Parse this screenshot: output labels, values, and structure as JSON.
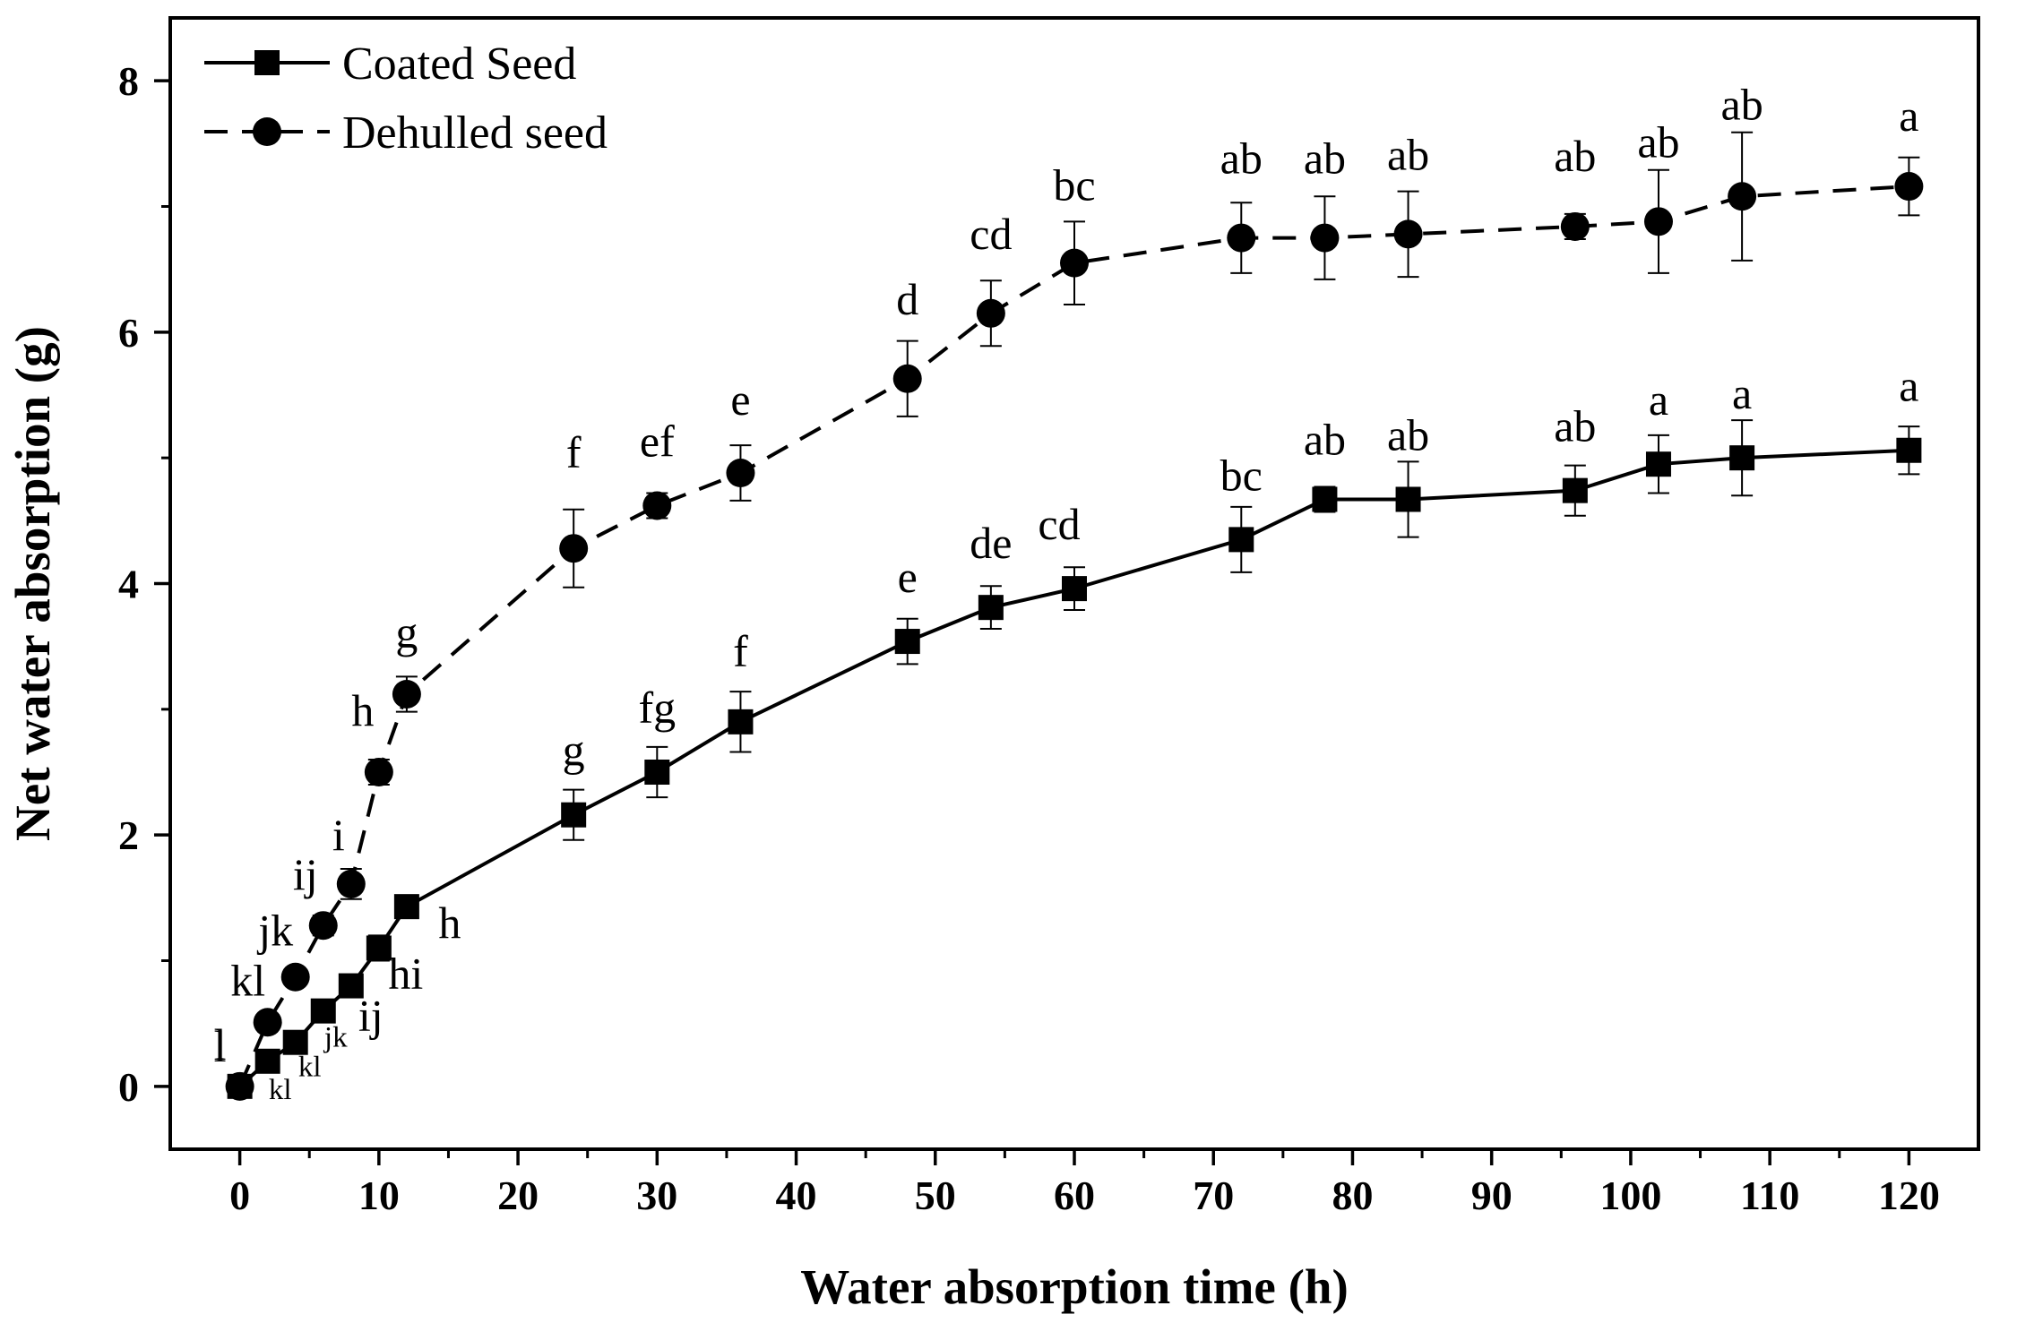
{
  "chart_data": {
    "type": "line",
    "title": "",
    "xlabel": "Water absorption time (h)",
    "ylabel": "Net water absorption (g)",
    "xlim": [
      -5,
      125
    ],
    "ylim": [
      -0.5,
      8.5
    ],
    "xticks": [
      0,
      10,
      20,
      30,
      40,
      50,
      60,
      70,
      80,
      90,
      100,
      110,
      120
    ],
    "yticks": [
      0,
      2,
      4,
      6,
      8
    ],
    "xtick_labels": [
      "0",
      "10",
      "20",
      "30",
      "40",
      "50",
      "60",
      "70",
      "80",
      "90",
      "100",
      "110",
      "120"
    ],
    "ytick_labels": [
      "0",
      "2",
      "4",
      "6",
      "8"
    ],
    "grid": false,
    "legend_position": "top-left",
    "series": [
      {
        "name": "Coated Seed",
        "marker": "square",
        "line_style": "solid",
        "color": "#000000",
        "x": [
          0,
          2,
          4,
          6,
          8,
          10,
          12,
          24,
          30,
          36,
          48,
          54,
          60,
          72,
          78,
          84,
          96,
          102,
          108,
          120
        ],
        "y": [
          0,
          0.2,
          0.35,
          0.6,
          0.8,
          1.1,
          1.43,
          2.16,
          2.5,
          2.9,
          3.54,
          3.81,
          3.96,
          4.35,
          4.67,
          4.67,
          4.74,
          4.95,
          5.0,
          5.06
        ],
        "err": [
          0,
          0.03,
          0.05,
          0.07,
          0.08,
          0.1,
          0.06,
          0.2,
          0.2,
          0.24,
          0.18,
          0.17,
          0.17,
          0.26,
          0.1,
          0.3,
          0.2,
          0.23,
          0.3,
          0.19
        ],
        "labels": [
          "l",
          "kl",
          "kl",
          "jk",
          "ij",
          "hi",
          "h",
          "g",
          "fg",
          "f",
          "e",
          "de",
          "cd",
          "bc",
          "ab",
          "ab",
          "ab",
          "a",
          "a",
          "a"
        ]
      },
      {
        "name": "Dehulled seed",
        "marker": "circle",
        "line_style": "dashed",
        "color": "#000000",
        "x": [
          0,
          2,
          4,
          6,
          8,
          10,
          12,
          24,
          30,
          36,
          48,
          54,
          60,
          72,
          78,
          84,
          96,
          102,
          108,
          120
        ],
        "y": [
          0,
          0.51,
          0.87,
          1.28,
          1.61,
          2.5,
          3.12,
          4.28,
          4.62,
          4.88,
          5.63,
          6.15,
          6.55,
          6.75,
          6.75,
          6.78,
          6.84,
          6.88,
          7.08,
          7.16
        ],
        "err": [
          0,
          0.04,
          0.06,
          0.08,
          0.12,
          0.1,
          0.14,
          0.31,
          0.1,
          0.22,
          0.3,
          0.26,
          0.33,
          0.28,
          0.33,
          0.34,
          0.1,
          0.41,
          0.51,
          0.23
        ],
        "labels": [
          "l",
          "kl",
          "jk",
          "ij",
          "i",
          "h",
          "g",
          "f",
          "ef",
          "e",
          "d",
          "cd",
          "bc",
          "ab",
          "ab",
          "ab",
          "ab",
          "ab",
          "ab",
          "a"
        ]
      }
    ]
  }
}
